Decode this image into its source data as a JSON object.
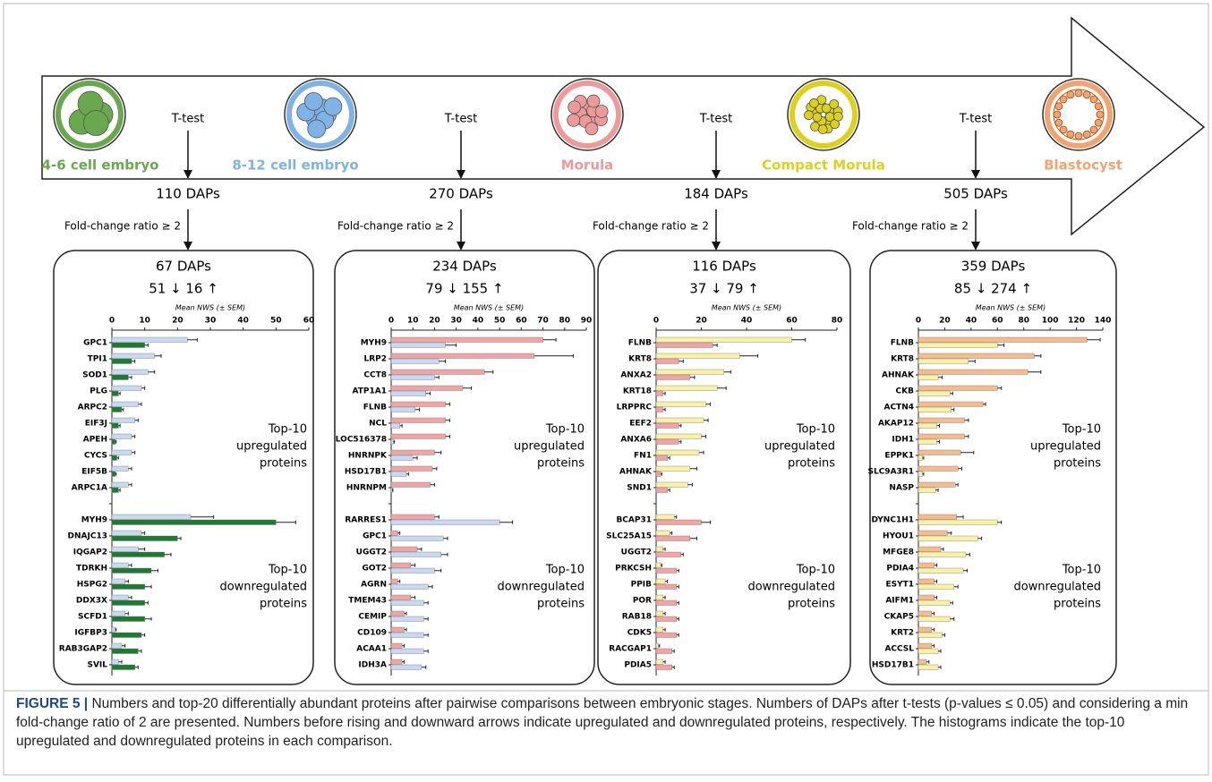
{
  "stages": [
    {
      "label": "4-6 cell embryo",
      "color": "#6aa84f"
    },
    {
      "label": "8-12 cell embryo",
      "color": "#7fb2e5"
    },
    {
      "label": "Morula",
      "color": "#ee9a9a"
    },
    {
      "label": "Compact Morula",
      "color": "#dcd21c"
    },
    {
      "label": "Blastocyst",
      "color": "#f2a470"
    }
  ],
  "comparisons": [
    {
      "test": "T-test",
      "daps": "110 DAPs",
      "filter": "Fold-change ratio ≥ 2",
      "selected": "67 DAPs",
      "direction": "51 ↓ 16 ↑"
    },
    {
      "test": "T-test",
      "daps": "270 DAPs",
      "filter": "Fold-change ratio ≥ 2",
      "selected": "234 DAPs",
      "direction": "79 ↓ 155 ↑"
    },
    {
      "test": "T-test",
      "daps": "184 DAPs",
      "filter": "Fold-change ratio ≥ 2",
      "selected": "116 DAPs",
      "direction": "37 ↓ 79 ↑"
    },
    {
      "test": "T-test",
      "daps": "505 DAPs",
      "filter": "Fold-change ratio ≥ 2",
      "selected": "359 DAPs",
      "direction": "85 ↓ 274 ↑"
    }
  ],
  "chart_data": [
    {
      "type": "hbar",
      "xlabel": "Mean NWS (± SEM)",
      "xlim": [
        0,
        60
      ],
      "xticks": [
        0,
        10,
        20,
        30,
        40,
        50,
        60
      ],
      "categories": [
        "GPC1",
        "TPI1",
        "SOD1",
        "PLG",
        "ARPC2",
        "EIF3J",
        "APEH",
        "CYCS",
        "EIF5B",
        "ARPC1A",
        null,
        "MYH9",
        "DNAJC13",
        "IQGAP2",
        "TDRKH",
        "HSPG2",
        "DDX3X",
        "SCFD1",
        "IGFBP3",
        "RAB3GAP2",
        "SVIL"
      ],
      "series": [
        {
          "color": "#c9d9f0",
          "values": [
            23,
            13,
            11,
            9,
            8,
            7,
            6,
            6,
            5,
            5,
            null,
            24,
            9,
            8,
            5,
            4,
            5,
            4,
            1,
            3,
            2
          ],
          "errors": [
            3,
            2,
            2,
            1,
            1,
            1,
            1,
            1,
            1,
            1,
            null,
            7,
            1,
            2,
            1,
            1,
            1,
            1,
            0.3,
            1,
            1
          ]
        },
        {
          "color": "#1d7a32",
          "values": [
            10,
            6,
            5,
            2,
            3,
            2,
            1,
            1.5,
            1,
            2,
            null,
            50,
            20,
            16,
            12,
            10,
            10,
            10,
            9,
            8,
            7
          ],
          "errors": [
            1,
            1,
            1,
            0.5,
            0.5,
            0.5,
            0.3,
            0.5,
            0.3,
            0.5,
            null,
            6,
            1,
            2,
            2,
            2,
            1,
            2,
            1,
            1,
            1
          ]
        }
      ],
      "annotations": [
        [
          "Top-10",
          "upregulated",
          "proteins"
        ],
        [
          "Top-10",
          "downregulated",
          "proteins"
        ]
      ]
    },
    {
      "type": "hbar",
      "xlabel": "Mean NWS (± SEM)",
      "xlim": [
        0,
        90
      ],
      "xticks": [
        0,
        10,
        20,
        30,
        40,
        50,
        60,
        70,
        80,
        90
      ],
      "categories": [
        "MYH9",
        "LRP2",
        "CCT8",
        "ATP1A1",
        "FLNB",
        "NCL",
        "LOC516378",
        "HNRNPK",
        "HSD17B1",
        "HNRNPM",
        null,
        "RARRES1",
        "GPC1",
        "UGGT2",
        "GOT2",
        "AGRN",
        "TMEM43",
        "CEMIP",
        "CD109",
        "ACAA1",
        "IDH3A"
      ],
      "series": [
        {
          "color": "#f2a3a3",
          "values": [
            70,
            66,
            43,
            33,
            25,
            25,
            25,
            20,
            19,
            18,
            null,
            20,
            3,
            12,
            9,
            3,
            9,
            6,
            6,
            5,
            5
          ],
          "errors": [
            6,
            18,
            4,
            4,
            2,
            2,
            2,
            3,
            2,
            2,
            null,
            2,
            1,
            2,
            2,
            1,
            2,
            1,
            1,
            1,
            1
          ]
        },
        {
          "color": "#c9d9f0",
          "values": [
            25,
            22,
            20,
            16,
            11,
            4,
            1,
            10,
            7,
            0.5,
            null,
            50,
            24,
            23,
            20,
            17,
            15,
            15,
            15,
            15,
            14
          ],
          "errors": [
            5,
            3,
            2,
            2,
            2,
            1,
            0.5,
            2,
            1,
            0.3,
            null,
            6,
            2,
            3,
            3,
            2,
            2,
            2,
            2,
            2,
            2
          ]
        }
      ],
      "annotations": [
        [
          "Top-10",
          "upregulated",
          "proteins"
        ],
        [
          "Top-10",
          "downregulated",
          "proteins"
        ]
      ]
    },
    {
      "type": "hbar",
      "xlabel": "Mean NWS (± SEM)",
      "xlim": [
        0,
        80
      ],
      "xticks": [
        0,
        20,
        40,
        60,
        80
      ],
      "categories": [
        "FLNB",
        "KRT8",
        "ANXA2",
        "KRT18",
        "LRPPRC",
        "EEF2",
        "ANXA6",
        "FN1",
        "AHNAK",
        "SND1",
        null,
        "BCAP31",
        "SLC25A15",
        "UGGT2",
        "PRKCSH",
        "PPIB",
        "POR",
        "RAB18",
        "CDK5",
        "RACGAP1",
        "PDIA5"
      ],
      "series": [
        {
          "color": "#f8f2a2",
          "values": [
            60,
            37,
            30,
            27,
            22,
            21,
            20,
            19,
            15,
            14,
            null,
            8,
            6,
            3,
            2,
            4,
            3,
            3,
            3,
            1,
            3
          ],
          "errors": [
            6,
            8,
            3,
            4,
            2,
            2,
            2,
            2,
            3,
            2,
            null,
            1,
            1,
            1,
            0.5,
            1,
            1,
            1,
            1,
            0.5,
            1
          ]
        },
        {
          "color": "#f2a3a3",
          "values": [
            25,
            10,
            15,
            3,
            3,
            10,
            10,
            5,
            2,
            5,
            null,
            20,
            15,
            11,
            9,
            9,
            9,
            9,
            9,
            7,
            7
          ],
          "errors": [
            2,
            2,
            2,
            1,
            1,
            1,
            1,
            1,
            0.5,
            1,
            null,
            4,
            3,
            1,
            1,
            1,
            1,
            1,
            1,
            1,
            1
          ]
        }
      ],
      "annotations": [
        [
          "Top-10",
          "upregulated",
          "proteins"
        ],
        [
          "Top-10",
          "downregulated",
          "proteins"
        ]
      ]
    },
    {
      "type": "hbar",
      "xlabel": "Mean NWS (± SEM)",
      "xlim": [
        0,
        140
      ],
      "xticks": [
        0,
        20,
        40,
        60,
        80,
        100,
        120,
        140
      ],
      "categories": [
        "FLNB",
        "KRT8",
        "AHNAK",
        "CKB",
        "ACTN4",
        "AKAP12",
        "IDH1",
        "EPPK1",
        "SLC9A3R1",
        "NASP",
        null,
        "DYNC1H1",
        "HYOU1",
        "MFGE8",
        "PDIA4",
        "ESYT1",
        "AIFM1",
        "CKAP5",
        "KRT2",
        "ACCSL",
        "HSD17B1"
      ],
      "series": [
        {
          "color": "#f6bb8c",
          "values": [
            128,
            88,
            83,
            60,
            49,
            35,
            35,
            32,
            30,
            28,
            null,
            29,
            22,
            17,
            12,
            12,
            12,
            10,
            10,
            10,
            6
          ],
          "errors": [
            10,
            5,
            10,
            3,
            2,
            3,
            3,
            10,
            3,
            2,
            null,
            5,
            3,
            2,
            2,
            2,
            2,
            2,
            2,
            2,
            2
          ]
        },
        {
          "color": "#f8f2a2",
          "values": [
            60,
            38,
            15,
            24,
            25,
            14,
            14,
            3,
            3,
            13,
            null,
            60,
            45,
            36,
            34,
            27,
            24,
            24,
            18,
            15,
            15
          ],
          "errors": [
            5,
            5,
            3,
            2,
            2,
            2,
            2,
            1,
            1,
            2,
            null,
            3,
            3,
            3,
            3,
            3,
            2,
            3,
            2,
            2,
            2
          ]
        }
      ],
      "annotations": [
        [
          "Top-10",
          "upregulated",
          "proteins"
        ],
        [
          "Top-10",
          "downregulated",
          "proteins"
        ]
      ]
    }
  ],
  "caption": {
    "label": "FIGURE 5 |",
    "text": "Numbers and top-20 differentially abundant proteins after pairwise comparisons between embryonic stages. Numbers of DAPs after t-tests (p-values ≤ 0.05) and considering a min fold-change ratio of 2 are presented. Numbers before rising and downward arrows indicate upregulated and downregulated proteins, respectively. The histograms indicate the top-10 upregulated and downregulated proteins in each comparison."
  }
}
